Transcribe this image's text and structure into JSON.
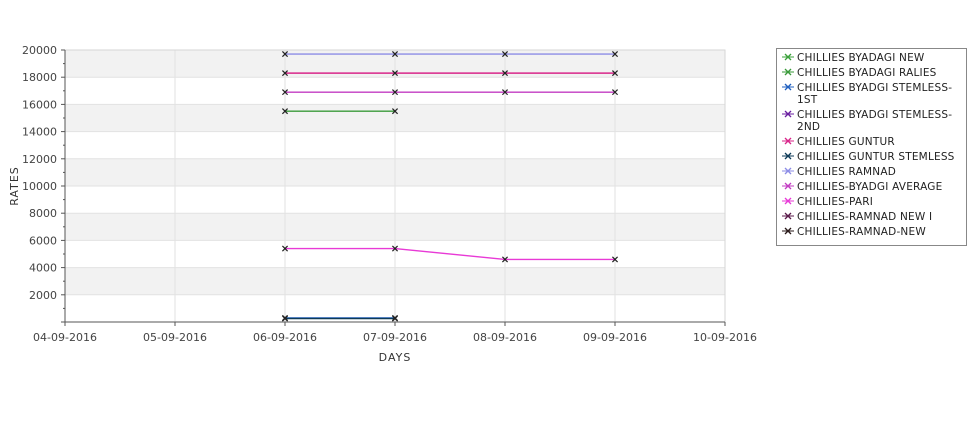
{
  "chart_data": {
    "type": "line",
    "title": "",
    "xlabel": "DAYS",
    "ylabel": "RATES",
    "x_ticks": [
      "04-09-2016",
      "05-09-2016",
      "06-09-2016",
      "07-09-2016",
      "08-09-2016",
      "09-09-2016",
      "10-09-2016"
    ],
    "y_ticks": [
      2000,
      4000,
      6000,
      8000,
      10000,
      12000,
      14000,
      16000,
      18000,
      20000
    ],
    "ylim": [
      0,
      20000
    ],
    "grid": true,
    "legend_position": "right",
    "series": [
      {
        "name": "CHILLIES BYADAGI NEW",
        "color": "#3aa03a",
        "points": []
      },
      {
        "name": "CHILLIES BYADAGI RALIES",
        "color": "#3a9a3a",
        "points": [
          {
            "x": "06-09-2016",
            "y": 15500
          },
          {
            "x": "07-09-2016",
            "y": 15500
          }
        ]
      },
      {
        "name": "CHILLIES BYADGI STEMLESS-1ST",
        "color": "#1f5fbf",
        "points": [
          {
            "x": "06-09-2016",
            "y": 300
          },
          {
            "x": "07-09-2016",
            "y": 300
          }
        ]
      },
      {
        "name": "CHILLIES BYADGI STEMLESS-2ND",
        "color": "#6a1fa0",
        "points": []
      },
      {
        "name": "CHILLIES GUNTUR",
        "color": "#d8268a",
        "points": [
          {
            "x": "06-09-2016",
            "y": 18300
          },
          {
            "x": "07-09-2016",
            "y": 18300
          },
          {
            "x": "08-09-2016",
            "y": 18300
          },
          {
            "x": "09-09-2016",
            "y": 18300
          }
        ]
      },
      {
        "name": "CHILLIES GUNTUR STEMLESS",
        "color": "#0d3a57",
        "points": [
          {
            "x": "06-09-2016",
            "y": 250
          },
          {
            "x": "07-09-2016",
            "y": 250
          }
        ]
      },
      {
        "name": "CHILLIES RAMNAD",
        "color": "#8c8ce6",
        "points": [
          {
            "x": "06-09-2016",
            "y": 19700
          },
          {
            "x": "07-09-2016",
            "y": 19700
          },
          {
            "x": "08-09-2016",
            "y": 19700
          },
          {
            "x": "09-09-2016",
            "y": 19700
          }
        ]
      },
      {
        "name": "CHILLIES-BYADGI AVERAGE",
        "color": "#c23cc2",
        "points": [
          {
            "x": "06-09-2016",
            "y": 16900
          },
          {
            "x": "07-09-2016",
            "y": 16900
          },
          {
            "x": "08-09-2016",
            "y": 16900
          },
          {
            "x": "09-09-2016",
            "y": 16900
          }
        ]
      },
      {
        "name": "CHILLIES-PARI",
        "color": "#e83ad6",
        "points": [
          {
            "x": "06-09-2016",
            "y": 5400
          },
          {
            "x": "07-09-2016",
            "y": 5400
          },
          {
            "x": "08-09-2016",
            "y": 4600
          },
          {
            "x": "09-09-2016",
            "y": 4600
          }
        ]
      },
      {
        "name": "CHILLIES-RAMNAD NEW I",
        "color": "#5a1a4a",
        "points": []
      },
      {
        "name": "CHILLIES-RAMNAD-NEW",
        "color": "#2a1a1a",
        "points": []
      }
    ]
  }
}
